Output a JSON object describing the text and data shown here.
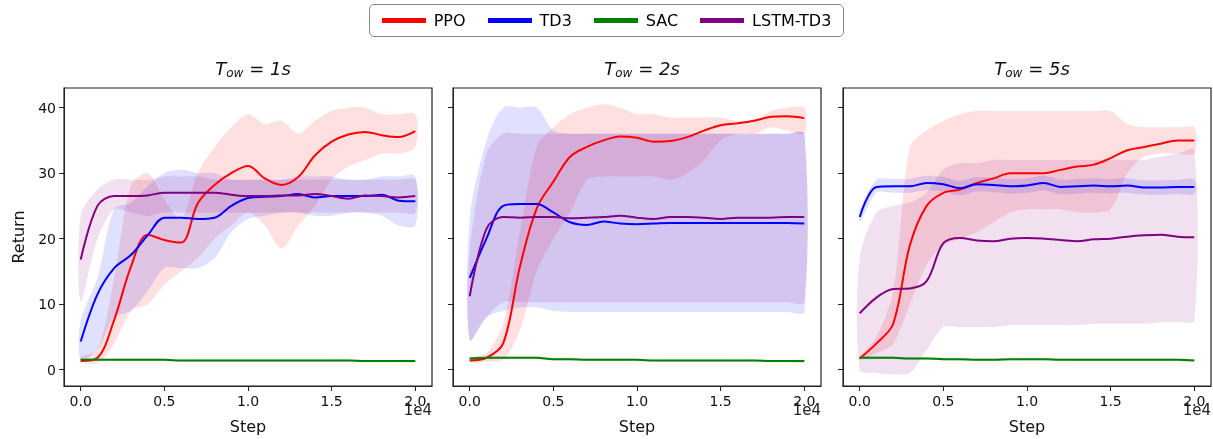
{
  "chart_data": [
    {
      "type": "line",
      "title": "T$_{ow}$ = 1s",
      "xlabel": "Step",
      "ylabel": "Return",
      "legend": "top",
      "grid": false,
      "annotations": [
        "1e4"
      ],
      "x": [
        0,
        0.1,
        0.2,
        0.3,
        0.4,
        0.5,
        0.6,
        0.7,
        0.8,
        0.9,
        1,
        1.1,
        1.2,
        1.3,
        1.4,
        1.5,
        1.6,
        1.7,
        1.8,
        1.9,
        2
      ],
      "xlim": [
        -0.1,
        2.1
      ],
      "xticks": [
        {
          "value": 0,
          "label": "0.0"
        },
        {
          "value": 0.5,
          "label": "0.5"
        },
        {
          "value": 1,
          "label": "1.0"
        },
        {
          "value": 1.5,
          "label": "1.5"
        },
        {
          "value": 2,
          "label": "2.0"
        }
      ],
      "ylim": [
        -2.5,
        43
      ],
      "yticks": [
        0,
        10,
        20,
        30,
        40
      ],
      "series": [
        {
          "name": "PPO",
          "color": "#ff0000",
          "values": [
            1.3,
            1.8,
            7.6,
            15.7,
            20.6,
            19.8,
            19.4,
            25.4,
            28.2,
            30,
            31.1,
            29.2,
            28.2,
            29.4,
            32.7,
            34.8,
            35.9,
            36.3,
            35.8,
            35.5,
            36.4
          ],
          "upper": [
            2,
            3,
            14,
            28,
            30,
            26,
            23,
            30,
            34,
            37,
            39,
            37.5,
            38,
            36,
            38,
            39.5,
            40,
            40,
            39,
            39,
            39
          ],
          "lower": [
            1.2,
            1,
            4,
            9,
            10,
            13,
            15,
            17,
            20,
            22,
            24,
            22,
            18.5,
            22,
            25,
            29,
            31,
            32,
            33,
            33,
            34
          ]
        },
        {
          "name": "TD3",
          "color": "#0000ff",
          "values": [
            4.3,
            11.5,
            15.5,
            17.5,
            20.5,
            23.2,
            23.2,
            23,
            23.2,
            25,
            26.2,
            26.4,
            26.5,
            26.8,
            26.3,
            26.5,
            26.5,
            26.5,
            26.7,
            25.8,
            25.7
          ],
          "upper": [
            7.5,
            14,
            24.5,
            25.5,
            28,
            30,
            30.5,
            30,
            30,
            29,
            29,
            29,
            29,
            29.5,
            29.5,
            29.5,
            29,
            29,
            29.5,
            29.5,
            29.5
          ],
          "lower": [
            1.5,
            3,
            8,
            9,
            12,
            15.5,
            15.5,
            15.5,
            17,
            21,
            23,
            23.5,
            24,
            24,
            23.5,
            23.5,
            24,
            24,
            23.5,
            22,
            22
          ]
        },
        {
          "name": "SAC",
          "color": "#008000",
          "values": [
            1.5,
            1.5,
            1.5,
            1.5,
            1.5,
            1.5,
            1.4,
            1.4,
            1.4,
            1.4,
            1.4,
            1.4,
            1.4,
            1.4,
            1.4,
            1.4,
            1.4,
            1.3,
            1.3,
            1.3,
            1.3
          ],
          "upper": [
            1.7,
            1.7,
            1.7,
            1.7,
            1.7,
            1.7,
            1.6,
            1.6,
            1.6,
            1.6,
            1.6,
            1.6,
            1.6,
            1.6,
            1.6,
            1.6,
            1.6,
            1.5,
            1.5,
            1.5,
            1.5
          ],
          "lower": [
            1.3,
            1.3,
            1.3,
            1.3,
            1.3,
            1.3,
            1.2,
            1.2,
            1.2,
            1.2,
            1.2,
            1.2,
            1.2,
            1.2,
            1.2,
            1.2,
            1.2,
            1.1,
            1.1,
            1.1,
            1.1
          ]
        },
        {
          "name": "LSTM-TD3",
          "color": "#800080",
          "values": [
            16.8,
            25,
            26.5,
            26.5,
            26.6,
            27,
            27,
            27,
            27,
            26.7,
            26.5,
            26.5,
            26.6,
            26.6,
            26.8,
            26.5,
            26.1,
            26.6,
            26.5,
            26.3,
            26.5
          ],
          "upper": [
            23.5,
            27.5,
            29,
            29,
            29,
            29.5,
            29.5,
            29.5,
            29,
            29,
            29,
            29,
            29,
            29,
            29,
            29,
            29,
            29,
            29,
            29,
            29
          ],
          "lower": [
            10.5,
            20,
            24.5,
            24,
            23.5,
            24,
            24,
            24,
            24,
            24,
            24,
            24,
            24,
            24,
            24,
            24,
            24,
            24,
            24,
            24,
            24
          ]
        }
      ]
    },
    {
      "type": "line",
      "title": "T$_{ow}$ = 2s",
      "xlabel": "Step",
      "grid": false,
      "tick_labels": "x",
      "annotations": [
        "1e4"
      ],
      "x": [
        0,
        0.1,
        0.2,
        0.3,
        0.4,
        0.5,
        0.6,
        0.7,
        0.8,
        0.9,
        1,
        1.1,
        1.2,
        1.3,
        1.4,
        1.5,
        1.6,
        1.7,
        1.8,
        1.9,
        2
      ],
      "xlim": [
        -0.1,
        2.1
      ],
      "xticks": [
        {
          "value": 0,
          "label": "0.0"
        },
        {
          "value": 0.5,
          "label": "0.5"
        },
        {
          "value": 1,
          "label": "1.0"
        },
        {
          "value": 1.5,
          "label": "1.5"
        },
        {
          "value": 2,
          "label": "2.0"
        }
      ],
      "ylim": [
        -2.5,
        43
      ],
      "yticks": [
        0,
        10,
        20,
        30,
        40
      ],
      "series": [
        {
          "color": "#ff0000",
          "values": [
            1.4,
            1.8,
            4,
            15.7,
            24.6,
            28.7,
            32.5,
            34,
            35,
            35.6,
            35.4,
            34.8,
            34.9,
            35.5,
            36.5,
            37.3,
            37.6,
            38,
            38.6,
            38.7,
            38.4
          ],
          "upper": [
            1.8,
            2.5,
            7,
            21,
            34,
            37,
            39,
            40,
            40.5,
            40,
            39,
            39,
            38.5,
            38.5,
            38.5,
            38.5,
            38,
            38,
            39.5,
            40,
            40
          ],
          "lower": [
            1.1,
            1.2,
            1.5,
            6,
            15,
            20,
            24,
            29,
            29.5,
            29.5,
            29.5,
            29.5,
            29,
            30,
            32,
            35,
            36,
            36,
            37,
            36.5,
            36
          ]
        },
        {
          "color": "#0000ff",
          "values": [
            14,
            20,
            25,
            25.3,
            25.3,
            24,
            22.5,
            22.1,
            22.6,
            22.3,
            22.2,
            22.3,
            22.4,
            22.4,
            22.4,
            22.4,
            22.4,
            22.4,
            22.4,
            22.4,
            22.3
          ],
          "upper": [
            23,
            35,
            40,
            40,
            40,
            36.5,
            36,
            36,
            36,
            36,
            36,
            36,
            36,
            36,
            36,
            36,
            36,
            36,
            36,
            36,
            36
          ],
          "lower": [
            4.5,
            8,
            9,
            9.5,
            9.5,
            9,
            8.8,
            8.8,
            8.8,
            8.8,
            8.8,
            8.8,
            8.8,
            8.8,
            8.8,
            8.8,
            8.8,
            8.8,
            8.8,
            8.8,
            8.8
          ]
        },
        {
          "color": "#008000",
          "values": [
            1.7,
            1.8,
            1.8,
            1.8,
            1.8,
            1.6,
            1.6,
            1.5,
            1.5,
            1.5,
            1.5,
            1.4,
            1.4,
            1.4,
            1.4,
            1.4,
            1.4,
            1.4,
            1.3,
            1.3,
            1.3
          ],
          "upper": [
            1.9,
            2,
            2,
            2,
            2,
            1.8,
            1.8,
            1.7,
            1.7,
            1.7,
            1.7,
            1.6,
            1.6,
            1.6,
            1.6,
            1.6,
            1.6,
            1.6,
            1.5,
            1.5,
            1.5
          ],
          "lower": [
            1.5,
            1.6,
            1.6,
            1.6,
            1.6,
            1.4,
            1.4,
            1.3,
            1.3,
            1.3,
            1.3,
            1.2,
            1.2,
            1.2,
            1.2,
            1.2,
            1.2,
            1.2,
            1.1,
            1.1,
            1.1
          ]
        },
        {
          "color": "#800080",
          "values": [
            11.2,
            21.5,
            23.3,
            23.2,
            23.3,
            23.3,
            23.1,
            23.2,
            23.3,
            23.5,
            23.2,
            23,
            23.3,
            23.3,
            23.2,
            23,
            23.2,
            23.2,
            23.2,
            23.3,
            23.3
          ],
          "upper": [
            18,
            33,
            36,
            36,
            36,
            36,
            36,
            36,
            36,
            36,
            36,
            36,
            36,
            36,
            36,
            36,
            36,
            36,
            36,
            36,
            36
          ],
          "lower": [
            4.5,
            8,
            10.3,
            10.3,
            10.3,
            10.3,
            10.3,
            10.3,
            10.3,
            10.3,
            10.3,
            10.3,
            10.3,
            10.3,
            10.3,
            10.3,
            10.3,
            10.3,
            10.3,
            10.3,
            10.3
          ]
        }
      ]
    },
    {
      "type": "line",
      "title": "T$_{ow}$ = 5s",
      "xlabel": "Step",
      "grid": false,
      "tick_labels": "x",
      "annotations": [
        "1e4"
      ],
      "x": [
        0,
        0.1,
        0.2,
        0.3,
        0.4,
        0.5,
        0.6,
        0.7,
        0.8,
        0.9,
        1,
        1.1,
        1.2,
        1.3,
        1.4,
        1.5,
        1.6,
        1.7,
        1.8,
        1.9,
        2
      ],
      "xlim": [
        -0.1,
        2.1
      ],
      "xticks": [
        {
          "value": 0,
          "label": "0.0"
        },
        {
          "value": 0.5,
          "label": "0.5"
        },
        {
          "value": 1,
          "label": "1.0"
        },
        {
          "value": 1.5,
          "label": "1.5"
        },
        {
          "value": 2,
          "label": "2.0"
        }
      ],
      "ylim": [
        -2.5,
        43
      ],
      "yticks": [
        0,
        10,
        20,
        30,
        40
      ],
      "series": [
        {
          "color": "#ff0000",
          "values": [
            1.7,
            4,
            7,
            19,
            25,
            27,
            27.5,
            28.5,
            29.2,
            30,
            30,
            30,
            30.5,
            31,
            31.3,
            32.3,
            33.5,
            34,
            34.5,
            35,
            35
          ],
          "upper": [
            2,
            5,
            12,
            34,
            36.5,
            38,
            39,
            39.5,
            39.5,
            39.5,
            39.5,
            39.5,
            39.5,
            39.5,
            39.5,
            39.5,
            37.5,
            37,
            37,
            37,
            37
          ],
          "lower": [
            1.5,
            2.5,
            4,
            10,
            16,
            19,
            20,
            21,
            22.5,
            24,
            24.5,
            24.5,
            24.5,
            24,
            24,
            24.5,
            30,
            32.5,
            33,
            33,
            33
          ]
        },
        {
          "color": "#0000ff",
          "values": [
            23.3,
            27.9,
            28,
            28,
            28.5,
            28.3,
            27.7,
            28.3,
            28.2,
            28,
            28.1,
            28.5,
            27.9,
            28,
            28.1,
            28,
            28.1,
            27.8,
            27.8,
            27.9,
            27.9
          ],
          "upper": [
            24.3,
            29,
            29.1,
            29.1,
            29.6,
            29.4,
            28.8,
            29.4,
            29.3,
            29.1,
            29.2,
            29.6,
            29,
            29.1,
            29.2,
            29.1,
            29.2,
            28.9,
            28.9,
            29,
            29
          ],
          "lower": [
            22.5,
            27,
            27,
            27,
            27.4,
            27.2,
            26.6,
            27.2,
            27.1,
            26.9,
            27,
            27.4,
            26.8,
            26.9,
            27,
            26.9,
            27,
            26.7,
            26.7,
            26.8,
            26.8
          ]
        },
        {
          "color": "#008000",
          "values": [
            1.8,
            1.8,
            1.8,
            1.7,
            1.7,
            1.6,
            1.6,
            1.5,
            1.5,
            1.6,
            1.6,
            1.6,
            1.5,
            1.5,
            1.5,
            1.5,
            1.5,
            1.5,
            1.5,
            1.5,
            1.4
          ],
          "upper": [
            2,
            2,
            2,
            1.9,
            1.9,
            1.8,
            1.8,
            1.7,
            1.7,
            1.8,
            1.8,
            1.8,
            1.7,
            1.7,
            1.7,
            1.7,
            1.7,
            1.7,
            1.7,
            1.7,
            1.6
          ],
          "lower": [
            1.6,
            1.6,
            1.6,
            1.5,
            1.5,
            1.4,
            1.4,
            1.3,
            1.3,
            1.4,
            1.4,
            1.4,
            1.3,
            1.3,
            1.3,
            1.3,
            1.3,
            1.3,
            1.3,
            1.3,
            1.2
          ]
        },
        {
          "color": "#800080",
          "values": [
            8.6,
            11,
            12.3,
            12.4,
            13.5,
            19.3,
            20.1,
            19.7,
            19.6,
            20,
            20.1,
            20,
            19.8,
            19.6,
            19.9,
            20,
            20.3,
            20.5,
            20.6,
            20.3,
            20.2
          ],
          "upper": [
            17,
            24,
            25,
            25.5,
            27,
            30.5,
            31.5,
            31.5,
            32,
            32,
            32,
            32,
            32,
            32,
            32,
            32,
            32,
            32,
            32.5,
            33,
            33.5
          ],
          "lower": [
            0,
            -0.5,
            -0.7,
            -0.5,
            3,
            6.5,
            6.5,
            6.5,
            6.5,
            6.8,
            6.8,
            6.8,
            6.8,
            6.8,
            7,
            7,
            7,
            7,
            7.2,
            7.3,
            7.5
          ]
        }
      ]
    }
  ]
}
